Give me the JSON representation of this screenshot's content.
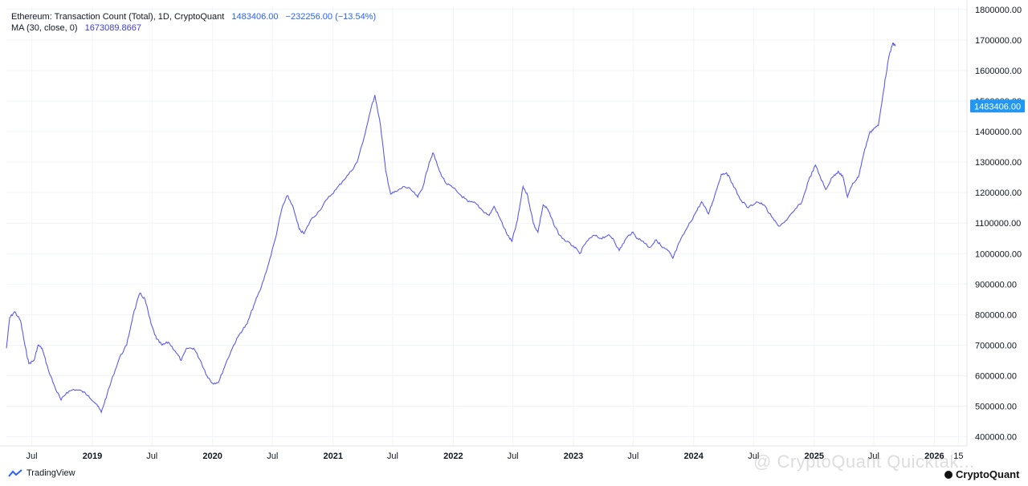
{
  "legend": {
    "title": "Ethereum: Transaction Count (Total), 1D, CryptoQuant",
    "value": "1483406.00",
    "change": "−232256.00 (−13.54%)",
    "ma_label": "MA (30, close, 0)",
    "ma_value": "1673089.8667"
  },
  "footer": {
    "brand": "TradingView"
  },
  "watermark": "@ CryptoQuant Quicktak...",
  "cq_brand": "CryptoQuant",
  "colors": {
    "line": "#5b5bf0",
    "price_tag": "#2196f3",
    "grid": "#f0f3fa"
  },
  "chart_data": {
    "type": "line",
    "series": [
      {
        "values": [
          [
            "2018-04-15",
            690000
          ],
          [
            "2018-04-25",
            790000
          ],
          [
            "2018-05-10",
            810000
          ],
          [
            "2018-05-28",
            780000
          ],
          [
            "2018-06-10",
            700000
          ],
          [
            "2018-06-22",
            640000
          ],
          [
            "2018-07-08",
            650000
          ],
          [
            "2018-07-20",
            700000
          ],
          [
            "2018-08-01",
            690000
          ],
          [
            "2018-08-20",
            620000
          ],
          [
            "2018-09-10",
            560000
          ],
          [
            "2018-09-28",
            520000
          ],
          [
            "2018-10-15",
            545000
          ],
          [
            "2018-11-05",
            555000
          ],
          [
            "2018-11-30",
            550000
          ],
          [
            "2018-12-20",
            535000
          ],
          [
            "2019-01-15",
            505000
          ],
          [
            "2019-01-28",
            480000
          ],
          [
            "2019-02-15",
            540000
          ],
          [
            "2019-03-05",
            600000
          ],
          [
            "2019-03-25",
            660000
          ],
          [
            "2019-04-15",
            700000
          ],
          [
            "2019-05-05",
            800000
          ],
          [
            "2019-05-25",
            870000
          ],
          [
            "2019-06-10",
            850000
          ],
          [
            "2019-06-28",
            770000
          ],
          [
            "2019-07-15",
            720000
          ],
          [
            "2019-08-01",
            700000
          ],
          [
            "2019-08-20",
            710000
          ],
          [
            "2019-09-10",
            680000
          ],
          [
            "2019-09-28",
            650000
          ],
          [
            "2019-10-15",
            690000
          ],
          [
            "2019-11-05",
            690000
          ],
          [
            "2019-11-25",
            650000
          ],
          [
            "2019-12-15",
            600000
          ],
          [
            "2020-01-01",
            575000
          ],
          [
            "2020-01-20",
            580000
          ],
          [
            "2020-02-10",
            640000
          ],
          [
            "2020-03-05",
            700000
          ],
          [
            "2020-03-25",
            740000
          ],
          [
            "2020-04-15",
            770000
          ],
          [
            "2020-05-05",
            830000
          ],
          [
            "2020-05-28",
            890000
          ],
          [
            "2020-06-20",
            970000
          ],
          [
            "2020-07-10",
            1050000
          ],
          [
            "2020-07-30",
            1150000
          ],
          [
            "2020-08-15",
            1190000
          ],
          [
            "2020-08-30",
            1160000
          ],
          [
            "2020-09-20",
            1080000
          ],
          [
            "2020-10-05",
            1065000
          ],
          [
            "2020-10-25",
            1110000
          ],
          [
            "2020-11-20",
            1140000
          ],
          [
            "2020-12-15",
            1180000
          ],
          [
            "2021-01-10",
            1210000
          ],
          [
            "2021-02-01",
            1240000
          ],
          [
            "2021-02-25",
            1270000
          ],
          [
            "2021-03-15",
            1300000
          ],
          [
            "2021-04-05",
            1380000
          ],
          [
            "2021-04-25",
            1470000
          ],
          [
            "2021-05-08",
            1520000
          ],
          [
            "2021-05-25",
            1420000
          ],
          [
            "2021-06-10",
            1270000
          ],
          [
            "2021-06-25",
            1195000
          ],
          [
            "2021-07-15",
            1205000
          ],
          [
            "2021-08-05",
            1220000
          ],
          [
            "2021-08-25",
            1210000
          ],
          [
            "2021-09-15",
            1185000
          ],
          [
            "2021-10-01",
            1220000
          ],
          [
            "2021-10-20",
            1300000
          ],
          [
            "2021-11-01",
            1330000
          ],
          [
            "2021-11-20",
            1270000
          ],
          [
            "2021-12-10",
            1230000
          ],
          [
            "2022-01-01",
            1215000
          ],
          [
            "2022-01-25",
            1190000
          ],
          [
            "2022-02-15",
            1170000
          ],
          [
            "2022-03-10",
            1165000
          ],
          [
            "2022-04-01",
            1140000
          ],
          [
            "2022-04-20",
            1125000
          ],
          [
            "2022-05-05",
            1155000
          ],
          [
            "2022-05-25",
            1110000
          ],
          [
            "2022-06-15",
            1060000
          ],
          [
            "2022-06-28",
            1040000
          ],
          [
            "2022-07-15",
            1110000
          ],
          [
            "2022-08-01",
            1220000
          ],
          [
            "2022-08-15",
            1190000
          ],
          [
            "2022-09-01",
            1100000
          ],
          [
            "2022-09-15",
            1070000
          ],
          [
            "2022-10-01",
            1160000
          ],
          [
            "2022-10-15",
            1145000
          ],
          [
            "2022-11-01",
            1100000
          ],
          [
            "2022-11-20",
            1060000
          ],
          [
            "2022-12-10",
            1040000
          ],
          [
            "2023-01-01",
            1025000
          ],
          [
            "2023-01-20",
            1000000
          ],
          [
            "2023-02-10",
            1040000
          ],
          [
            "2023-03-05",
            1060000
          ],
          [
            "2023-03-25",
            1050000
          ],
          [
            "2023-04-15",
            1060000
          ],
          [
            "2023-05-01",
            1050000
          ],
          [
            "2023-05-20",
            1010000
          ],
          [
            "2023-06-10",
            1050000
          ],
          [
            "2023-06-28",
            1070000
          ],
          [
            "2023-07-15",
            1050000
          ],
          [
            "2023-08-01",
            1040000
          ],
          [
            "2023-08-20",
            1020000
          ],
          [
            "2023-09-10",
            1045000
          ],
          [
            "2023-09-28",
            1020000
          ],
          [
            "2023-10-15",
            1010000
          ],
          [
            "2023-10-30",
            985000
          ],
          [
            "2023-11-20",
            1040000
          ],
          [
            "2023-12-15",
            1090000
          ],
          [
            "2024-01-05",
            1130000
          ],
          [
            "2024-01-25",
            1170000
          ],
          [
            "2024-02-15",
            1130000
          ],
          [
            "2024-03-05",
            1190000
          ],
          [
            "2024-03-25",
            1260000
          ],
          [
            "2024-04-10",
            1265000
          ],
          [
            "2024-04-28",
            1230000
          ],
          [
            "2024-05-20",
            1180000
          ],
          [
            "2024-06-15",
            1150000
          ],
          [
            "2024-07-10",
            1170000
          ],
          [
            "2024-08-01",
            1160000
          ],
          [
            "2024-08-25",
            1120000
          ],
          [
            "2024-09-15",
            1090000
          ],
          [
            "2024-10-10",
            1110000
          ],
          [
            "2024-11-01",
            1140000
          ],
          [
            "2024-11-25",
            1170000
          ],
          [
            "2024-12-15",
            1240000
          ],
          [
            "2025-01-05",
            1290000
          ],
          [
            "2025-01-20",
            1250000
          ],
          [
            "2025-02-05",
            1210000
          ],
          [
            "2025-02-25",
            1250000
          ],
          [
            "2025-03-15",
            1270000
          ],
          [
            "2025-03-30",
            1250000
          ],
          [
            "2025-04-12",
            1185000
          ],
          [
            "2025-04-28",
            1230000
          ],
          [
            "2025-05-15",
            1250000
          ],
          [
            "2025-06-01",
            1330000
          ],
          [
            "2025-06-18",
            1395000
          ],
          [
            "2025-07-01",
            1410000
          ],
          [
            "2025-07-15",
            1420000
          ],
          [
            "2025-07-30",
            1530000
          ],
          [
            "2025-08-15",
            1640000
          ],
          [
            "2025-08-28",
            1690000
          ],
          [
            "2025-09-05",
            1680000
          ]
        ]
      }
    ],
    "x_ticks": [
      "Jul",
      "2019",
      "Jul",
      "2020",
      "Jul",
      "2021",
      "Jul",
      "2022",
      "Jul",
      "2023",
      "Jul",
      "2024",
      "Jul",
      "2025",
      "Jul",
      "2026",
      "15"
    ],
    "x_tick_dates": [
      "2018-07-01",
      "2019-01-01",
      "2019-07-01",
      "2020-01-01",
      "2020-07-01",
      "2021-01-01",
      "2021-07-01",
      "2022-01-01",
      "2022-07-01",
      "2023-01-01",
      "2023-07-01",
      "2024-01-01",
      "2024-07-01",
      "2025-01-01",
      "2025-07-01",
      "2026-01-01",
      "2026-03-15"
    ],
    "y_ticks": [
      "1800000.00",
      "1700000.00",
      "1600000.00",
      "1500000.00",
      "1400000.00",
      "1300000.00",
      "1200000.00",
      "1100000.00",
      "1000000.00",
      "900000.00",
      "800000.00",
      "700000.00",
      "600000.00",
      "500000.00",
      "400000.00"
    ],
    "ylim": [
      370000,
      1810000
    ],
    "xlim": [
      "2018-04-15",
      "2026-04-10"
    ],
    "price_tag": "1483406.00",
    "price_tag_value": 1483406,
    "grid": true
  }
}
